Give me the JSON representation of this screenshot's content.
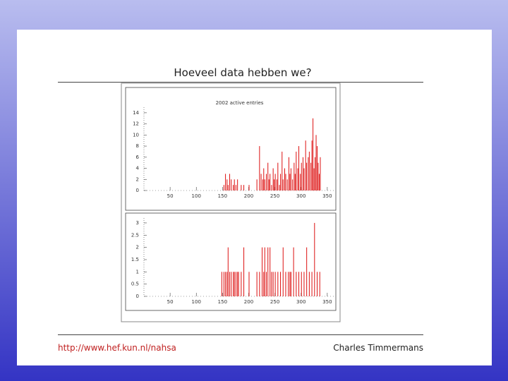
{
  "slide": {
    "title": "Hoeveel data hebben we?",
    "footer_left": "http://www.hef.kun.nl/nahsa",
    "footer_right": "Charles Timmermans"
  },
  "chart_data": [
    {
      "type": "bar",
      "title": "2002 active entries",
      "color": "#dd1111",
      "x": [
        152,
        155,
        158,
        160,
        163,
        166,
        170,
        172,
        175,
        178,
        185,
        190,
        200,
        215,
        220,
        223,
        226,
        228,
        230,
        233,
        236,
        238,
        240,
        243,
        246,
        248,
        250,
        253,
        255,
        258,
        260,
        263,
        265,
        268,
        270,
        273,
        276,
        278,
        280,
        283,
        286,
        288,
        290,
        293,
        295,
        298,
        300,
        303,
        305,
        308,
        310,
        313,
        315,
        318,
        320,
        322,
        324,
        326,
        328,
        330,
        332,
        334,
        336
      ],
      "values": [
        1,
        3,
        2,
        1,
        3,
        2,
        1,
        2,
        1,
        2,
        1,
        1,
        1,
        2,
        8,
        3,
        2,
        4,
        2,
        3,
        5,
        2,
        3,
        1,
        4,
        2,
        3,
        2,
        5,
        1,
        3,
        7,
        2,
        4,
        3,
        2,
        6,
        3,
        4,
        2,
        5,
        3,
        7,
        4,
        8,
        3,
        5,
        6,
        4,
        9,
        5,
        6,
        7,
        5,
        9,
        13,
        4,
        6,
        10,
        8,
        5,
        3,
        6
      ],
      "xlim": [
        0,
        365
      ],
      "xticks": [
        50,
        100,
        150,
        200,
        250,
        300,
        350
      ],
      "ylim": [
        0,
        15
      ],
      "yticks": [
        0,
        2,
        4,
        6,
        8,
        10,
        12,
        14
      ]
    },
    {
      "type": "bar",
      "color": "#dd1111",
      "x": [
        148,
        152,
        155,
        158,
        160,
        163,
        166,
        170,
        172,
        175,
        178,
        180,
        185,
        190,
        200,
        215,
        220,
        225,
        228,
        230,
        233,
        236,
        240,
        243,
        246,
        250,
        255,
        260,
        265,
        270,
        275,
        278,
        280,
        285,
        290,
        295,
        300,
        305,
        310,
        315,
        320,
        325,
        330,
        335
      ],
      "values": [
        1,
        1,
        1,
        1,
        2,
        1,
        1,
        1,
        1,
        1,
        1,
        1,
        1,
        2,
        1,
        1,
        1,
        2,
        1,
        2,
        1,
        2,
        2,
        1,
        1,
        1,
        1,
        1,
        2,
        1,
        1,
        1,
        1,
        2,
        1,
        1,
        1,
        1,
        2,
        1,
        1,
        3,
        1,
        1
      ],
      "xlim": [
        0,
        365
      ],
      "xticks": [
        50,
        100,
        150,
        200,
        250,
        300,
        350
      ],
      "ylim": [
        0,
        3.2
      ],
      "yticks": [
        0,
        0.5,
        1,
        1.5,
        2,
        2.5,
        3
      ]
    }
  ]
}
